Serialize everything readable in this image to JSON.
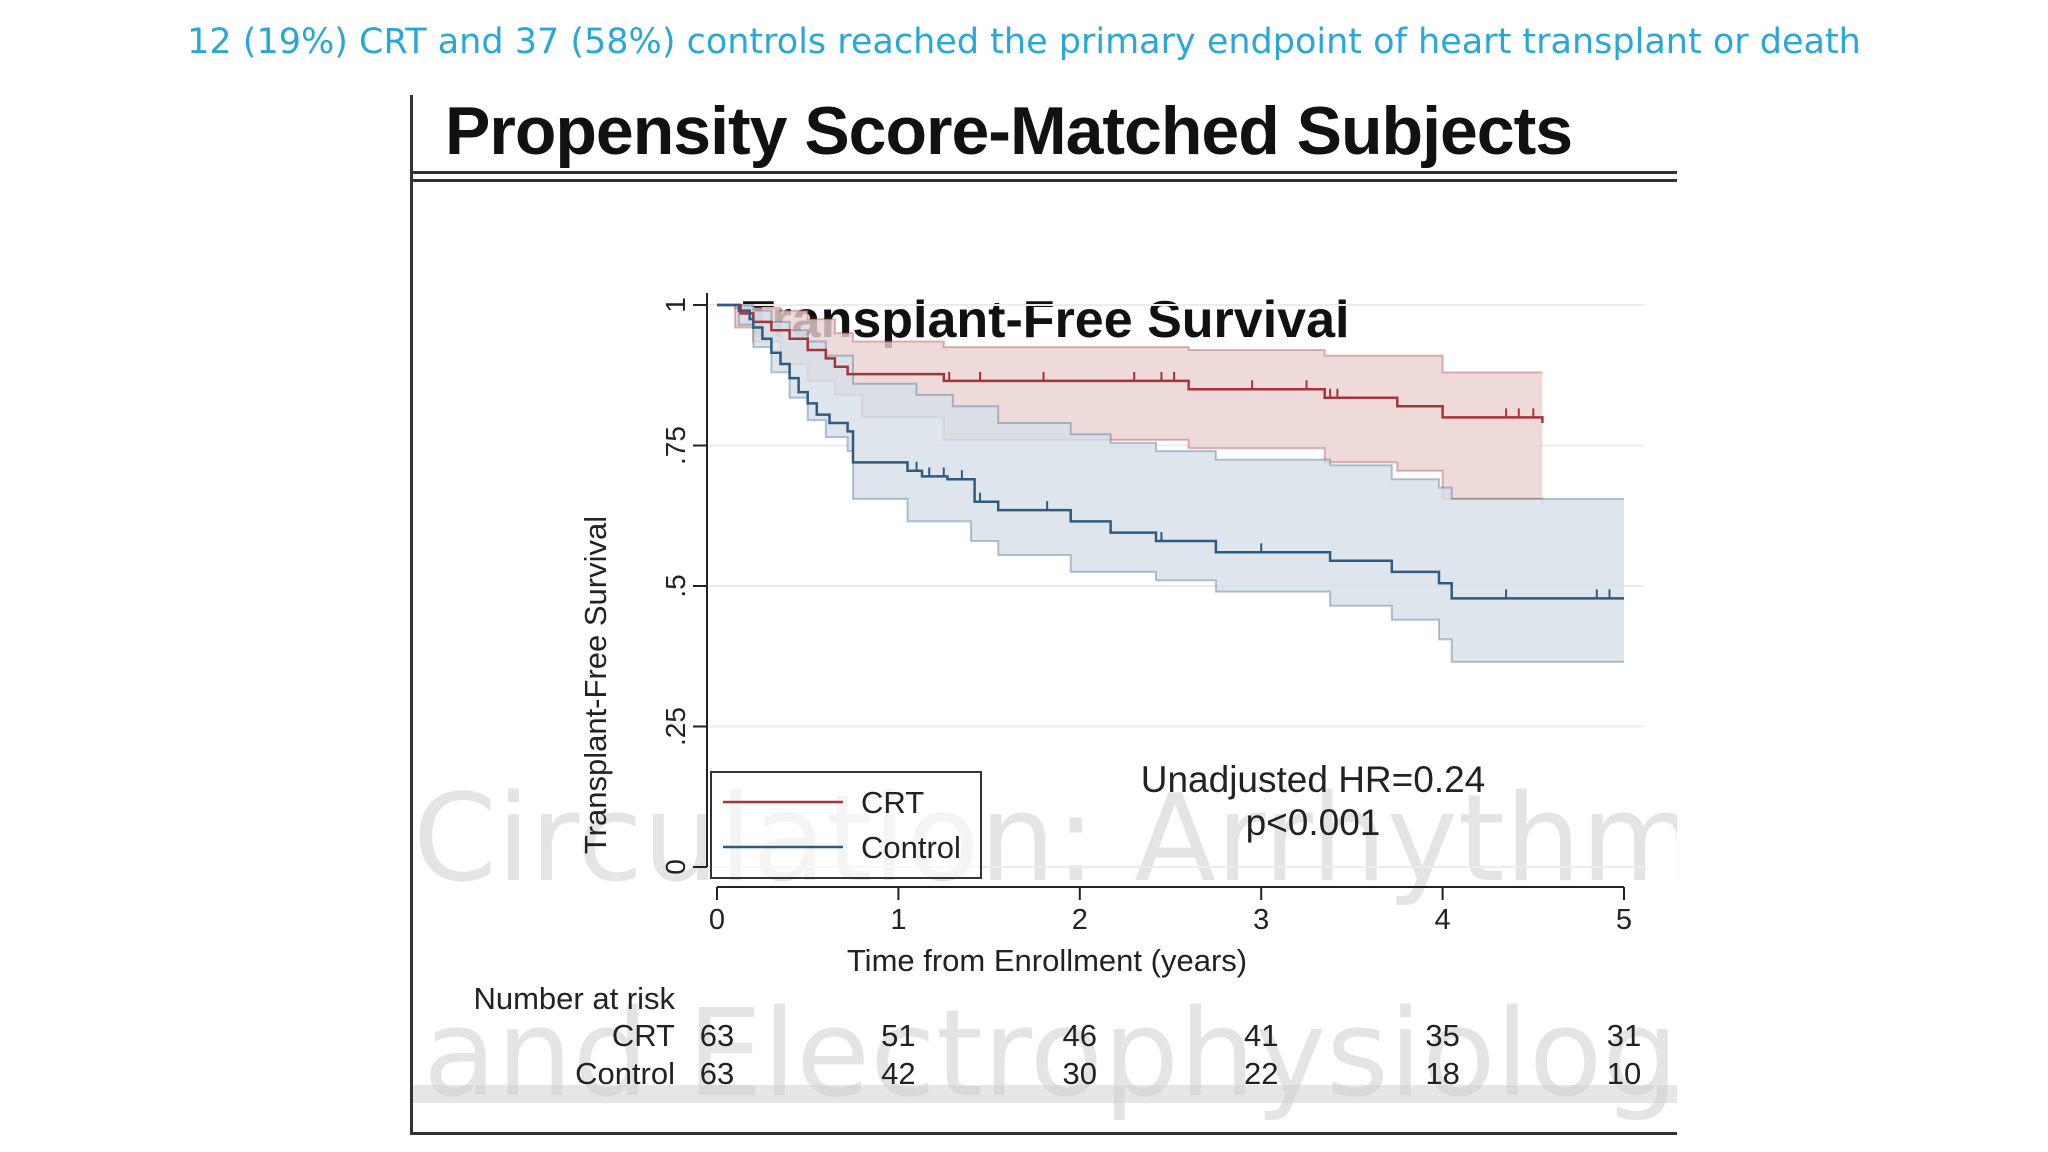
{
  "slide": {
    "caption": "12 (19%) CRT and 37 (58%) controls reached the primary endpoint of heart transplant or death"
  },
  "figure": {
    "header": "Propensity Score-Matched Subjects",
    "watermark_line1": "Circulation: Arrhythmia",
    "watermark_line2": "and Electrophysiology"
  },
  "chart_data": {
    "type": "line",
    "subtype": "kaplan-meier",
    "title": "Transplant-Free Survival",
    "xlabel": "Time from Enrollment (years)",
    "ylabel": "Transplant-Free Survival",
    "xlim": [
      0,
      5
    ],
    "ylim": [
      0,
      1
    ],
    "x_ticks": [
      "0",
      "1",
      "2",
      "3",
      "4",
      "5"
    ],
    "y_ticks": [
      "0",
      ".25",
      ".5",
      ".75",
      "1"
    ],
    "grid": true,
    "legend_position": "bottom-left",
    "annotation": [
      "Unadjusted HR=0.24",
      "p<0.001"
    ],
    "colors": {
      "CRT": "#a8323a",
      "Control": "#2f5b80",
      "CRT_band": "#e8d1cf",
      "Control_band": "#d6dfe7"
    },
    "series": [
      {
        "name": "CRT",
        "steps": [
          [
            0,
            1.0
          ],
          [
            0.13,
            0.985
          ],
          [
            0.2,
            0.97
          ],
          [
            0.3,
            0.955
          ],
          [
            0.4,
            0.94
          ],
          [
            0.5,
            0.92
          ],
          [
            0.6,
            0.905
          ],
          [
            0.65,
            0.89
          ],
          [
            0.72,
            0.877
          ],
          [
            1.25,
            0.865
          ],
          [
            2.6,
            0.85
          ],
          [
            3.35,
            0.835
          ],
          [
            3.75,
            0.82
          ],
          [
            4.0,
            0.8
          ],
          [
            4.55,
            0.79
          ]
        ],
        "ci_upper": [
          [
            0,
            1.0
          ],
          [
            0.1,
            0.995
          ],
          [
            0.35,
            0.99
          ],
          [
            0.5,
            0.975
          ],
          [
            0.65,
            0.95
          ],
          [
            0.75,
            0.935
          ],
          [
            1.25,
            0.925
          ],
          [
            2.6,
            0.92
          ],
          [
            3.35,
            0.91
          ],
          [
            4.0,
            0.88
          ],
          [
            4.55,
            0.88
          ]
        ],
        "ci_lower": [
          [
            0,
            1.0
          ],
          [
            0.1,
            0.96
          ],
          [
            0.2,
            0.935
          ],
          [
            0.35,
            0.895
          ],
          [
            0.5,
            0.865
          ],
          [
            0.65,
            0.84
          ],
          [
            0.8,
            0.8
          ],
          [
            1.25,
            0.76
          ],
          [
            2.6,
            0.745
          ],
          [
            3.35,
            0.72
          ],
          [
            3.75,
            0.705
          ],
          [
            4.0,
            0.655
          ],
          [
            4.55,
            0.645
          ]
        ],
        "censor_times": [
          1.28,
          1.45,
          1.8,
          2.3,
          2.45,
          2.52,
          2.95,
          3.25,
          3.38,
          3.42,
          4.35,
          4.42,
          4.5
        ]
      },
      {
        "name": "Control",
        "steps": [
          [
            0,
            1.0
          ],
          [
            0.12,
            0.99
          ],
          [
            0.18,
            0.975
          ],
          [
            0.2,
            0.96
          ],
          [
            0.25,
            0.94
          ],
          [
            0.3,
            0.915
          ],
          [
            0.35,
            0.895
          ],
          [
            0.4,
            0.87
          ],
          [
            0.45,
            0.845
          ],
          [
            0.5,
            0.825
          ],
          [
            0.55,
            0.805
          ],
          [
            0.62,
            0.79
          ],
          [
            0.72,
            0.775
          ],
          [
            0.75,
            0.72
          ],
          [
            1.05,
            0.705
          ],
          [
            1.13,
            0.695
          ],
          [
            1.27,
            0.69
          ],
          [
            1.42,
            0.65
          ],
          [
            1.55,
            0.635
          ],
          [
            1.95,
            0.615
          ],
          [
            2.17,
            0.595
          ],
          [
            2.42,
            0.58
          ],
          [
            2.75,
            0.56
          ],
          [
            3.38,
            0.545
          ],
          [
            3.72,
            0.525
          ],
          [
            3.98,
            0.505
          ],
          [
            4.05,
            0.478
          ],
          [
            5.0,
            0.478
          ]
        ],
        "ci_upper": [
          [
            0,
            1.0
          ],
          [
            0.2,
            0.99
          ],
          [
            0.3,
            0.97
          ],
          [
            0.4,
            0.955
          ],
          [
            0.5,
            0.935
          ],
          [
            0.6,
            0.91
          ],
          [
            0.75,
            0.86
          ],
          [
            1.1,
            0.84
          ],
          [
            1.3,
            0.82
          ],
          [
            1.55,
            0.79
          ],
          [
            1.95,
            0.77
          ],
          [
            2.17,
            0.755
          ],
          [
            2.42,
            0.74
          ],
          [
            2.75,
            0.725
          ],
          [
            3.38,
            0.715
          ],
          [
            3.72,
            0.69
          ],
          [
            3.98,
            0.675
          ],
          [
            4.05,
            0.655
          ],
          [
            5.0,
            0.655
          ]
        ],
        "ci_lower": [
          [
            0,
            1.0
          ],
          [
            0.12,
            0.965
          ],
          [
            0.2,
            0.925
          ],
          [
            0.3,
            0.88
          ],
          [
            0.4,
            0.835
          ],
          [
            0.5,
            0.795
          ],
          [
            0.6,
            0.765
          ],
          [
            0.72,
            0.74
          ],
          [
            0.75,
            0.655
          ],
          [
            1.05,
            0.615
          ],
          [
            1.4,
            0.58
          ],
          [
            1.55,
            0.555
          ],
          [
            1.95,
            0.525
          ],
          [
            2.42,
            0.51
          ],
          [
            2.75,
            0.49
          ],
          [
            3.38,
            0.465
          ],
          [
            3.72,
            0.44
          ],
          [
            3.98,
            0.405
          ],
          [
            4.05,
            0.365
          ],
          [
            5.0,
            0.365
          ]
        ],
        "censor_times": [
          1.1,
          1.17,
          1.25,
          1.35,
          1.45,
          1.82,
          2.45,
          3.0,
          4.35,
          4.85,
          4.92
        ]
      }
    ],
    "risk_table": {
      "heading": "Number at risk",
      "times": [
        "0",
        "1",
        "2",
        "3",
        "4",
        "5"
      ],
      "rows": [
        {
          "label": "CRT",
          "values": [
            "63",
            "51",
            "46",
            "41",
            "35",
            "31"
          ]
        },
        {
          "label": "Control",
          "values": [
            "63",
            "42",
            "30",
            "22",
            "18",
            "10"
          ]
        }
      ]
    }
  }
}
